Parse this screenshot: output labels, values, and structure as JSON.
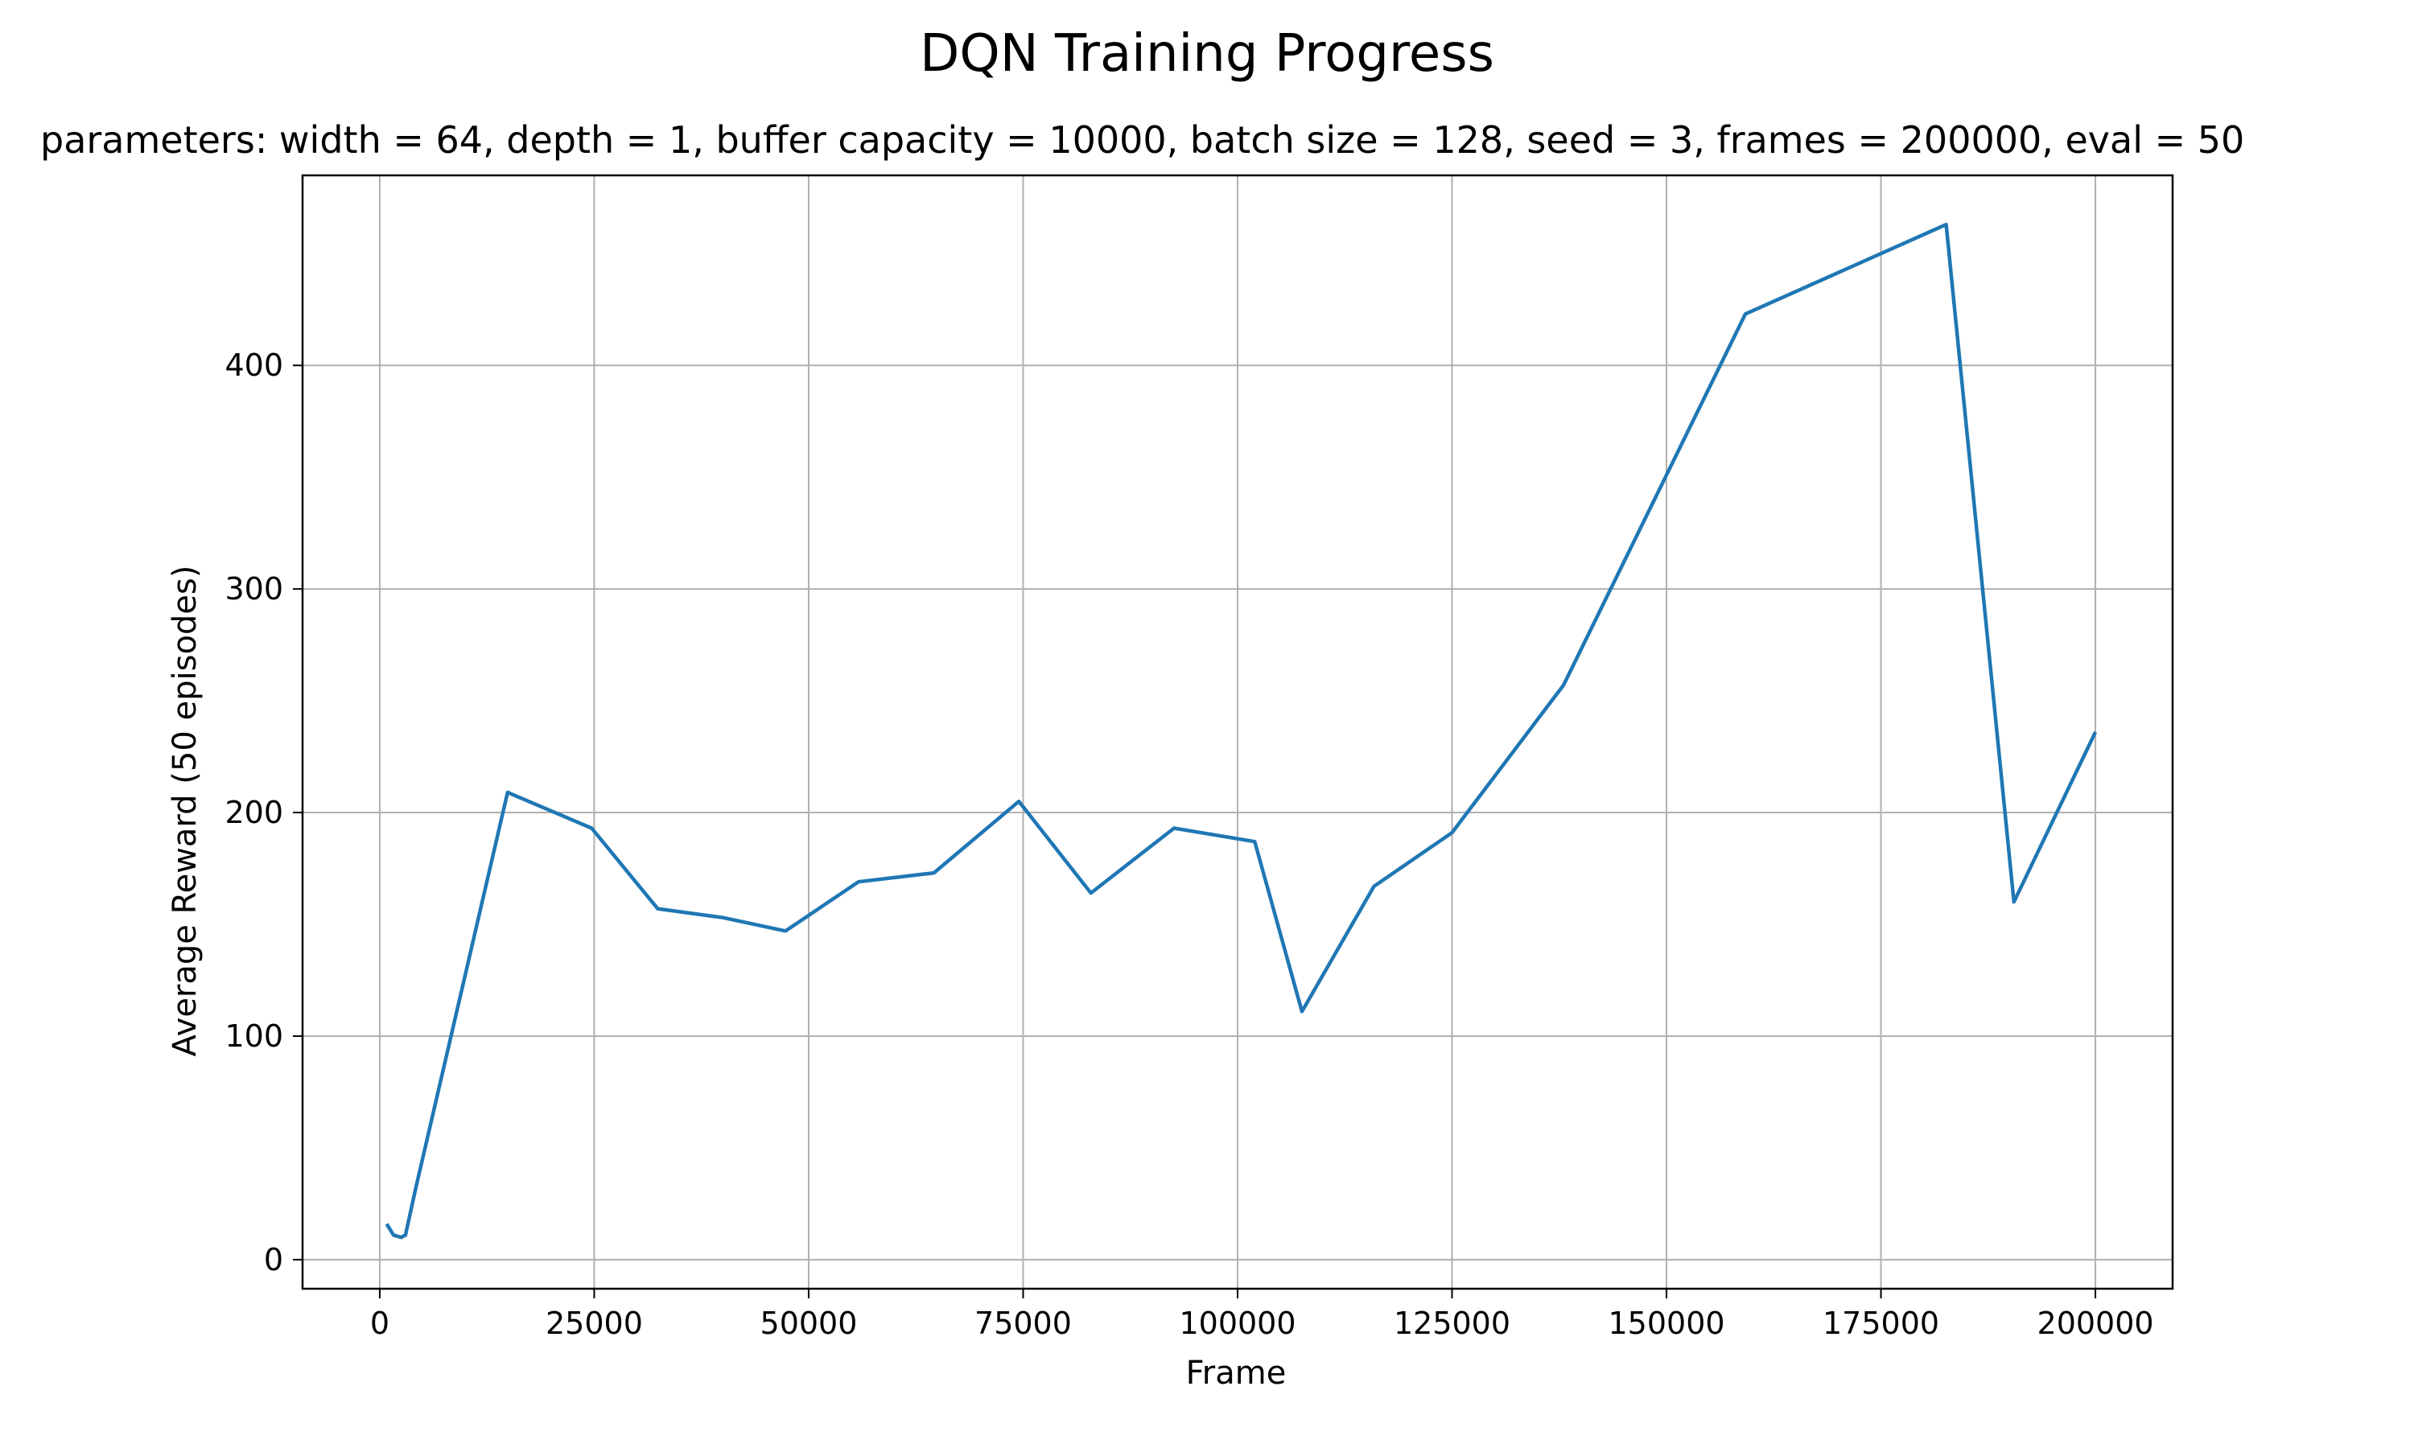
{
  "chart_data": {
    "type": "line",
    "title": "DQN Training Progress",
    "subtitle": "parameters: width = 64, depth = 1, buffer capacity = 10000, batch size = 128, seed = 3, frames = 200000, eval = 50",
    "xlabel": "Frame",
    "ylabel": "Average Reward (50 episodes)",
    "xlim": [
      -9000,
      209000
    ],
    "ylim": [
      -13,
      485
    ],
    "xticks": [
      0,
      25000,
      50000,
      75000,
      100000,
      125000,
      150000,
      175000,
      200000
    ],
    "yticks": [
      0,
      100,
      200,
      300,
      400
    ],
    "grid": true,
    "legend": "none",
    "colors": {
      "line": "#1f77b4",
      "grid": "#b0b0b0",
      "axes": "#000000"
    },
    "series": [
      {
        "x": [
          800,
          1600,
          2500,
          3000,
          4200,
          14900,
          24700,
          32400,
          40000,
          47300,
          55800,
          64600,
          74500,
          82900,
          92600,
          102000,
          107500,
          115900,
          125000,
          138000,
          159200,
          182600,
          190500,
          200000
        ],
        "y": [
          16,
          11,
          10,
          11,
          32,
          209,
          193,
          157,
          153,
          147,
          169,
          173,
          205,
          164,
          193,
          187,
          111,
          167,
          191,
          257,
          423,
          463,
          160,
          236
        ]
      }
    ]
  }
}
